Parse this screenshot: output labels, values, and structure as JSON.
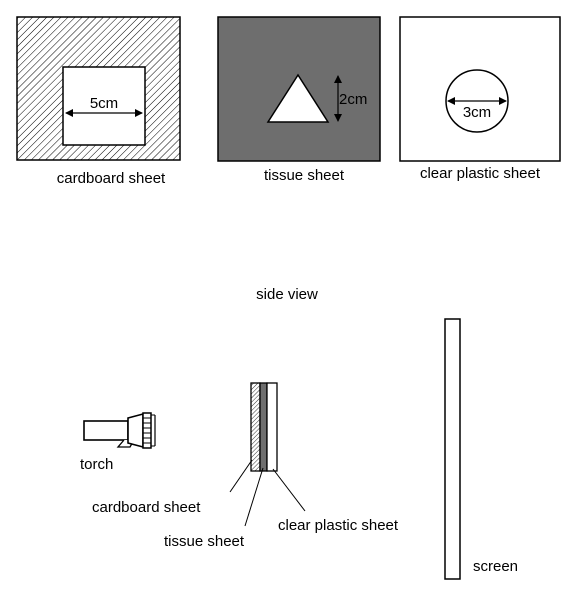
{
  "sheets": {
    "cardboard": {
      "caption": "cardboard sheet",
      "measure": "5cm"
    },
    "tissue": {
      "caption": "tissue sheet",
      "measure": "2cm"
    },
    "plastic": {
      "caption": "clear plastic sheet",
      "measure": "3cm"
    }
  },
  "side_view": {
    "title": "side view",
    "labels": {
      "torch": "torch",
      "cardboard": "cardboard sheet",
      "tissue": "tissue sheet",
      "plastic": "clear plastic sheet",
      "screen": "screen"
    }
  },
  "colors": {
    "line": "#000000",
    "hatch": "#000000",
    "tissue_fill": "#6e6e6e",
    "plastic_fill": "#ffffff",
    "background": "#ffffff"
  }
}
